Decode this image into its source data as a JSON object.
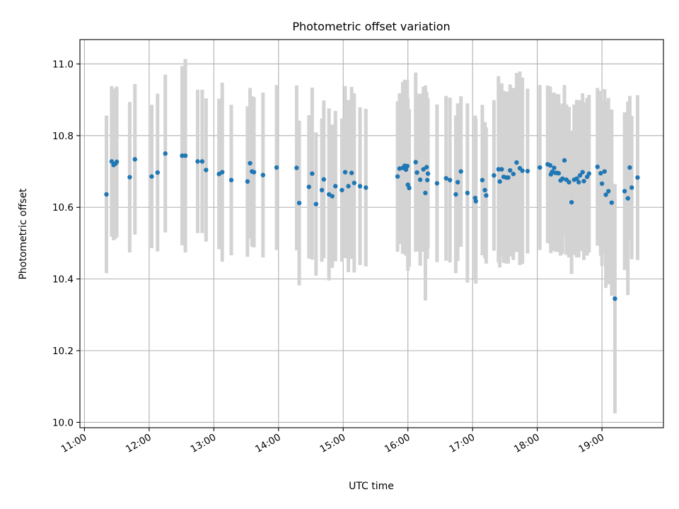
{
  "chart_data": {
    "type": "scatter",
    "title": "Photometric offset variation",
    "xlabel": "UTC time",
    "ylabel": "Photometric offset",
    "x_unit": "hours (UTC)",
    "xlim": [
      10.93,
      19.95
    ],
    "ylim": [
      9.985,
      11.068
    ],
    "xticks": [
      {
        "value": 11,
        "label": "11:00"
      },
      {
        "value": 12,
        "label": "12:00"
      },
      {
        "value": 13,
        "label": "13:00"
      },
      {
        "value": 14,
        "label": "14:00"
      },
      {
        "value": 15,
        "label": "15:00"
      },
      {
        "value": 16,
        "label": "16:00"
      },
      {
        "value": 17,
        "label": "17:00"
      },
      {
        "value": 18,
        "label": "18:00"
      },
      {
        "value": 19,
        "label": "19:00"
      }
    ],
    "yticks": [
      {
        "value": 10.0,
        "label": "10.0"
      },
      {
        "value": 10.2,
        "label": "10.2"
      },
      {
        "value": 10.4,
        "label": "10.4"
      },
      {
        "value": 10.6,
        "label": "10.6"
      },
      {
        "value": 10.8,
        "label": "10.8"
      },
      {
        "value": 11.0,
        "label": "11.0"
      }
    ],
    "grid": true,
    "point_color": "#1f77b4",
    "errorbar_color": "#d3d3d3",
    "points": [
      [
        11.34,
        10.636,
        0.22
      ],
      [
        11.42,
        10.728,
        0.21
      ],
      [
        11.45,
        10.718,
        0.21
      ],
      [
        11.48,
        10.722,
        0.21
      ],
      [
        11.5,
        10.727,
        0.21
      ],
      [
        11.7,
        10.684,
        0.21
      ],
      [
        11.78,
        10.734,
        0.21
      ],
      [
        12.04,
        10.686,
        0.2
      ],
      [
        12.13,
        10.697,
        0.22
      ],
      [
        12.25,
        10.75,
        0.22
      ],
      [
        12.51,
        10.744,
        0.25
      ],
      [
        12.56,
        10.744,
        0.27
      ],
      [
        12.75,
        10.728,
        0.2
      ],
      [
        12.82,
        10.728,
        0.2
      ],
      [
        12.88,
        10.704,
        0.2
      ],
      [
        13.08,
        10.693,
        0.21
      ],
      [
        13.13,
        10.698,
        0.25
      ],
      [
        13.27,
        10.676,
        0.21
      ],
      [
        13.52,
        10.672,
        0.21
      ],
      [
        13.56,
        10.723,
        0.21
      ],
      [
        13.59,
        10.7,
        0.21
      ],
      [
        13.62,
        10.698,
        0.21
      ],
      [
        13.76,
        10.69,
        0.23
      ],
      [
        13.97,
        10.711,
        0.23
      ],
      [
        14.28,
        10.71,
        0.23
      ],
      [
        14.32,
        10.612,
        0.23
      ],
      [
        14.47,
        10.657,
        0.2
      ],
      [
        14.52,
        10.694,
        0.24
      ],
      [
        14.58,
        10.609,
        0.2
      ],
      [
        14.67,
        10.648,
        0.2
      ],
      [
        14.7,
        10.678,
        0.22
      ],
      [
        14.78,
        10.636,
        0.24
      ],
      [
        14.83,
        10.631,
        0.2
      ],
      [
        14.88,
        10.659,
        0.21
      ],
      [
        14.98,
        10.648,
        0.2
      ],
      [
        15.03,
        10.698,
        0.24
      ],
      [
        15.08,
        10.659,
        0.24
      ],
      [
        15.13,
        10.696,
        0.24
      ],
      [
        15.17,
        10.668,
        0.25
      ],
      [
        15.26,
        10.659,
        0.22
      ],
      [
        15.35,
        10.655,
        0.22
      ],
      [
        15.84,
        10.686,
        0.21
      ],
      [
        15.87,
        10.708,
        0.21
      ],
      [
        15.92,
        10.71,
        0.24
      ],
      [
        15.95,
        10.716,
        0.24
      ],
      [
        15.97,
        10.705,
        0.24
      ],
      [
        15.99,
        10.715,
        0.24
      ],
      [
        16.0,
        10.663,
        0.24
      ],
      [
        16.02,
        10.654,
        0.22
      ],
      [
        16.12,
        10.726,
        0.25
      ],
      [
        16.14,
        10.697,
        0.22
      ],
      [
        16.19,
        10.677,
        0.24
      ],
      [
        16.24,
        10.706,
        0.23
      ],
      [
        16.27,
        10.64,
        0.3
      ],
      [
        16.29,
        10.712,
        0.21
      ],
      [
        16.31,
        10.694,
        0.21
      ],
      [
        16.3,
        10.676,
        0.22
      ],
      [
        16.45,
        10.667,
        0.22
      ],
      [
        16.59,
        10.681,
        0.23
      ],
      [
        16.65,
        10.676,
        0.23
      ],
      [
        16.74,
        10.636,
        0.22
      ],
      [
        16.77,
        10.67,
        0.22
      ],
      [
        16.82,
        10.7,
        0.21
      ],
      [
        16.92,
        10.64,
        0.25
      ],
      [
        17.04,
        10.626,
        0.23
      ],
      [
        17.05,
        10.617,
        0.23
      ],
      [
        17.15,
        10.676,
        0.21
      ],
      [
        17.19,
        10.648,
        0.19
      ],
      [
        17.21,
        10.633,
        0.19
      ],
      [
        17.33,
        10.689,
        0.21
      ],
      [
        17.4,
        10.706,
        0.26
      ],
      [
        17.42,
        10.672,
        0.24
      ],
      [
        17.45,
        10.706,
        0.24
      ],
      [
        17.48,
        10.685,
        0.24
      ],
      [
        17.52,
        10.683,
        0.24
      ],
      [
        17.55,
        10.683,
        0.24
      ],
      [
        17.58,
        10.703,
        0.24
      ],
      [
        17.63,
        10.693,
        0.24
      ],
      [
        17.68,
        10.725,
        0.25
      ],
      [
        17.73,
        10.709,
        0.27
      ],
      [
        17.77,
        10.702,
        0.26
      ],
      [
        17.85,
        10.701,
        0.23
      ],
      [
        18.04,
        10.711,
        0.23
      ],
      [
        18.16,
        10.72,
        0.22
      ],
      [
        18.2,
        10.717,
        0.22
      ],
      [
        18.21,
        10.692,
        0.22
      ],
      [
        18.23,
        10.699,
        0.22
      ],
      [
        18.26,
        10.71,
        0.21
      ],
      [
        18.28,
        10.696,
        0.22
      ],
      [
        18.31,
        10.696,
        0.22
      ],
      [
        18.33,
        10.695,
        0.22
      ],
      [
        18.36,
        10.675,
        0.21
      ],
      [
        18.39,
        10.68,
        0.21
      ],
      [
        18.42,
        10.731,
        0.21
      ],
      [
        18.45,
        10.677,
        0.21
      ],
      [
        18.49,
        10.67,
        0.21
      ],
      [
        18.53,
        10.614,
        0.2
      ],
      [
        18.57,
        10.677,
        0.21
      ],
      [
        18.61,
        10.68,
        0.22
      ],
      [
        18.64,
        10.67,
        0.21
      ],
      [
        18.66,
        10.689,
        0.21
      ],
      [
        18.7,
        10.698,
        0.22
      ],
      [
        18.72,
        10.673,
        0.22
      ],
      [
        18.77,
        10.685,
        0.22
      ],
      [
        18.8,
        10.694,
        0.22
      ],
      [
        18.93,
        10.713,
        0.22
      ],
      [
        18.98,
        10.695,
        0.23
      ],
      [
        19.0,
        10.666,
        0.23
      ],
      [
        19.04,
        10.7,
        0.23
      ],
      [
        19.06,
        10.635,
        0.26
      ],
      [
        19.1,
        10.645,
        0.26
      ],
      [
        19.15,
        10.613,
        0.26
      ],
      [
        19.2,
        10.345,
        0.32
      ],
      [
        19.35,
        10.645,
        0.22
      ],
      [
        19.4,
        10.625,
        0.27
      ],
      [
        19.43,
        10.711,
        0.2
      ],
      [
        19.46,
        10.655,
        0.2
      ],
      [
        19.55,
        10.683,
        0.23
      ]
    ]
  }
}
